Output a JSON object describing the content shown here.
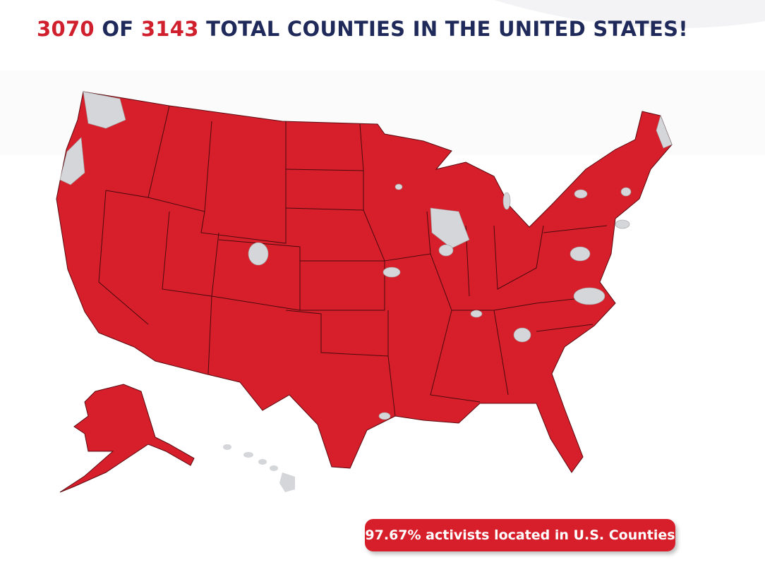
{
  "header": {
    "title": {
      "parts": [
        "3070",
        "OF",
        "3143",
        "TOTAL COUNTIES IN THE UNITED STATES!"
      ]
    }
  },
  "badge": {
    "text": "97.67% activists located in U.S. Counties"
  }
}
